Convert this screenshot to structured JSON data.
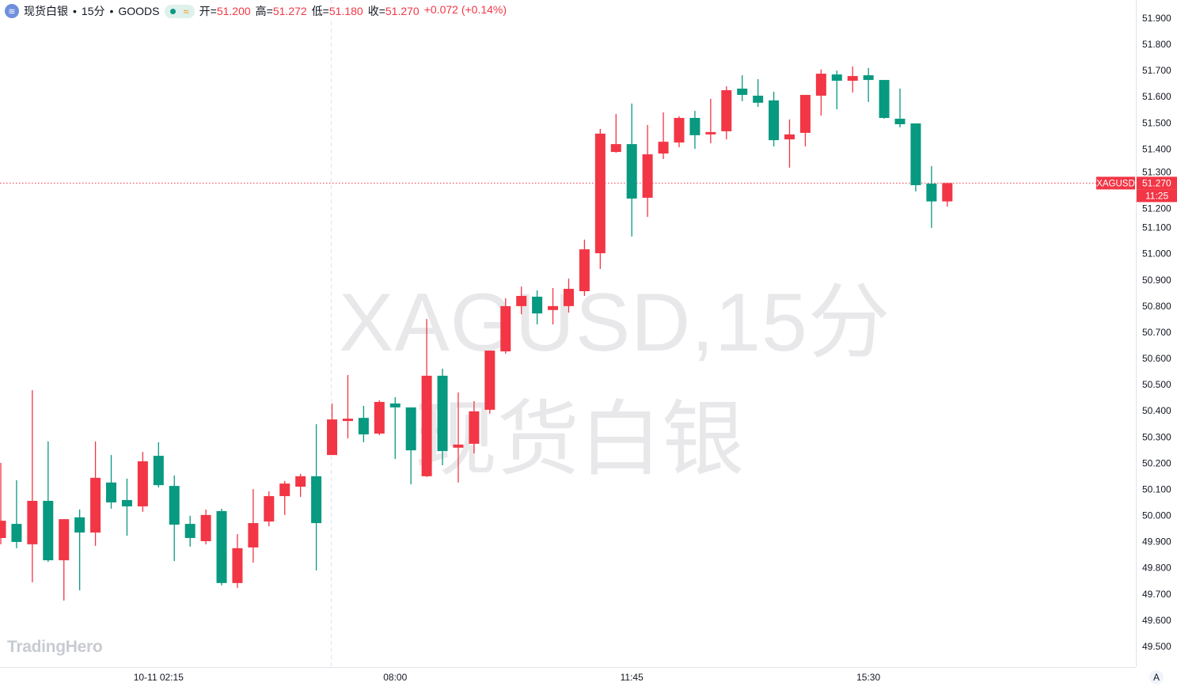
{
  "header": {
    "symbol_name": "现货白银",
    "interval": "15分",
    "exchange": "GOODS",
    "separator": "•",
    "market_status_icon": "green-dot-icon",
    "realtime_icon": "wave-icon",
    "open_label": "开=",
    "open": "51.200",
    "high_label": "高=",
    "high": "51.272",
    "low_label": "低=",
    "low": "51.180",
    "close_label": "收=",
    "close": "51.270",
    "change": "+0.072 (+0.14%)"
  },
  "watermark": {
    "line1": "XAGUSD,15分",
    "line2": "现货白银"
  },
  "brand": "TradingHero",
  "price_label": {
    "symbol": "XAGUSD",
    "price": "51.270",
    "countdown": "11:25"
  },
  "scale_button": "A",
  "colors": {
    "up": "#f23645",
    "down": "#089981",
    "text": "#131722",
    "grid_axis": "#e0e3eb"
  },
  "chart_data": {
    "type": "candlestick",
    "symbol": "XAGUSD",
    "ylim": [
      49.45,
      51.97
    ],
    "yticks": [
      "49.500",
      "49.600",
      "49.700",
      "49.800",
      "49.900",
      "50.000",
      "50.100",
      "50.200",
      "50.300",
      "50.400",
      "50.500",
      "50.600",
      "50.700",
      "50.800",
      "50.900",
      "51.000",
      "51.100",
      "51.200",
      "51.300",
      "51.400",
      "51.500",
      "51.600",
      "51.700",
      "51.800",
      "51.900"
    ],
    "xtick_labels": [
      {
        "time": "02:15",
        "label": "10-11 02:15"
      },
      {
        "time": "08:00",
        "label": "08:00"
      },
      {
        "time": "11:45",
        "label": "11:45"
      },
      {
        "time": "15:30",
        "label": "15:30"
      }
    ],
    "session_break": "07:00",
    "last_price": 51.27,
    "candles": [
      {
        "t": "23:45",
        "o": 49.914,
        "h": 50.201,
        "l": 49.89,
        "c": 49.98
      },
      {
        "t": "00:00",
        "o": 49.968,
        "h": 50.135,
        "l": 49.875,
        "c": 49.899
      },
      {
        "t": "00:15",
        "o": 49.89,
        "h": 50.479,
        "l": 49.745,
        "c": 50.056
      },
      {
        "t": "00:30",
        "o": 50.056,
        "h": 50.283,
        "l": 49.823,
        "c": 49.829
      },
      {
        "t": "00:45",
        "o": 49.829,
        "h": 49.986,
        "l": 49.675,
        "c": 49.986
      },
      {
        "t": "01:00",
        "o": 49.993,
        "h": 50.023,
        "l": 49.714,
        "c": 49.935
      },
      {
        "t": "01:15",
        "o": 49.935,
        "h": 50.283,
        "l": 49.884,
        "c": 50.144
      },
      {
        "t": "01:30",
        "o": 50.126,
        "h": 50.231,
        "l": 50.026,
        "c": 50.05
      },
      {
        "t": "01:45",
        "o": 50.059,
        "h": 50.141,
        "l": 49.923,
        "c": 50.035
      },
      {
        "t": "02:00",
        "o": 50.035,
        "h": 50.243,
        "l": 50.014,
        "c": 50.207
      },
      {
        "t": "02:15",
        "o": 50.228,
        "h": 50.28,
        "l": 50.107,
        "c": 50.116
      },
      {
        "t": "02:30",
        "o": 50.113,
        "h": 50.153,
        "l": 49.826,
        "c": 49.965
      },
      {
        "t": "02:45",
        "o": 49.968,
        "h": 49.999,
        "l": 49.881,
        "c": 49.914
      },
      {
        "t": "03:00",
        "o": 49.902,
        "h": 50.023,
        "l": 49.89,
        "c": 50.002
      },
      {
        "t": "03:15",
        "o": 50.017,
        "h": 50.026,
        "l": 49.733,
        "c": 49.742
      },
      {
        "t": "03:30",
        "o": 49.742,
        "h": 49.929,
        "l": 49.723,
        "c": 49.875
      },
      {
        "t": "03:45",
        "o": 49.878,
        "h": 50.101,
        "l": 49.82,
        "c": 49.971
      },
      {
        "t": "04:00",
        "o": 49.977,
        "h": 50.092,
        "l": 49.959,
        "c": 50.074
      },
      {
        "t": "04:15",
        "o": 50.074,
        "h": 50.132,
        "l": 50.002,
        "c": 50.122
      },
      {
        "t": "04:30",
        "o": 50.11,
        "h": 50.159,
        "l": 50.071,
        "c": 50.15
      },
      {
        "t": "04:45",
        "o": 50.15,
        "h": 50.349,
        "l": 49.79,
        "c": 49.971
      },
      {
        "t": "07:00",
        "o": 50.231,
        "h": 50.428,
        "l": 50.231,
        "c": 50.367
      },
      {
        "t": "07:15",
        "o": 50.361,
        "h": 50.537,
        "l": 50.295,
        "c": 50.37
      },
      {
        "t": "07:30",
        "o": 50.373,
        "h": 50.419,
        "l": 50.28,
        "c": 50.31
      },
      {
        "t": "07:45",
        "o": 50.313,
        "h": 50.44,
        "l": 50.307,
        "c": 50.434
      },
      {
        "t": "08:00",
        "o": 50.428,
        "h": 50.452,
        "l": 50.216,
        "c": 50.413
      },
      {
        "t": "08:15",
        "o": 50.413,
        "h": 50.413,
        "l": 50.119,
        "c": 50.249
      },
      {
        "t": "08:30",
        "o": 50.15,
        "h": 50.751,
        "l": 50.147,
        "c": 50.534
      },
      {
        "t": "08:45",
        "o": 50.534,
        "h": 50.561,
        "l": 50.192,
        "c": 50.246
      },
      {
        "t": "09:00",
        "o": 50.259,
        "h": 50.47,
        "l": 50.126,
        "c": 50.271
      },
      {
        "t": "09:15",
        "o": 50.274,
        "h": 50.437,
        "l": 50.237,
        "c": 50.398
      },
      {
        "t": "09:30",
        "o": 50.404,
        "h": 50.63,
        "l": 50.389,
        "c": 50.63
      },
      {
        "t": "09:45",
        "o": 50.627,
        "h": 50.83,
        "l": 50.618,
        "c": 50.8
      },
      {
        "t": "10:00",
        "o": 50.8,
        "h": 50.875,
        "l": 50.769,
        "c": 50.839
      },
      {
        "t": "10:15",
        "o": 50.836,
        "h": 50.86,
        "l": 50.73,
        "c": 50.772
      },
      {
        "t": "10:30",
        "o": 50.785,
        "h": 50.869,
        "l": 50.73,
        "c": 50.8
      },
      {
        "t": "10:45",
        "o": 50.8,
        "h": 50.905,
        "l": 50.775,
        "c": 50.866
      },
      {
        "t": "11:00",
        "o": 50.857,
        "h": 51.054,
        "l": 50.839,
        "c": 51.017
      },
      {
        "t": "11:15",
        "o": 51.002,
        "h": 51.477,
        "l": 50.942,
        "c": 51.459
      },
      {
        "t": "11:30",
        "o": 51.389,
        "h": 51.534,
        "l": 51.386,
        "c": 51.419
      },
      {
        "t": "11:45",
        "o": 51.419,
        "h": 51.574,
        "l": 51.066,
        "c": 51.211
      },
      {
        "t": "12:00",
        "o": 51.214,
        "h": 51.492,
        "l": 51.141,
        "c": 51.38
      },
      {
        "t": "12:15",
        "o": 51.383,
        "h": 51.54,
        "l": 51.362,
        "c": 51.428
      },
      {
        "t": "12:30",
        "o": 51.425,
        "h": 51.525,
        "l": 51.407,
        "c": 51.519
      },
      {
        "t": "12:45",
        "o": 51.519,
        "h": 51.546,
        "l": 51.401,
        "c": 51.453
      },
      {
        "t": "13:00",
        "o": 51.456,
        "h": 51.592,
        "l": 51.422,
        "c": 51.465
      },
      {
        "t": "13:15",
        "o": 51.468,
        "h": 51.64,
        "l": 51.437,
        "c": 51.625
      },
      {
        "t": "13:30",
        "o": 51.631,
        "h": 51.682,
        "l": 51.583,
        "c": 51.607
      },
      {
        "t": "13:45",
        "o": 51.604,
        "h": 51.667,
        "l": 51.561,
        "c": 51.577
      },
      {
        "t": "14:00",
        "o": 51.586,
        "h": 51.619,
        "l": 51.41,
        "c": 51.434
      },
      {
        "t": "14:15",
        "o": 51.437,
        "h": 51.513,
        "l": 51.329,
        "c": 51.456
      },
      {
        "t": "14:30",
        "o": 51.462,
        "h": 51.607,
        "l": 51.41,
        "c": 51.607
      },
      {
        "t": "14:45",
        "o": 51.604,
        "h": 51.704,
        "l": 51.528,
        "c": 51.688
      },
      {
        "t": "15:00",
        "o": 51.685,
        "h": 51.7,
        "l": 51.552,
        "c": 51.661
      },
      {
        "t": "15:15",
        "o": 51.661,
        "h": 51.716,
        "l": 51.616,
        "c": 51.679
      },
      {
        "t": "15:30",
        "o": 51.682,
        "h": 51.71,
        "l": 51.58,
        "c": 51.664
      },
      {
        "t": "15:45",
        "o": 51.664,
        "h": 51.664,
        "l": 51.516,
        "c": 51.519
      },
      {
        "t": "16:00",
        "o": 51.516,
        "h": 51.631,
        "l": 51.483,
        "c": 51.495
      },
      {
        "t": "16:15",
        "o": 51.498,
        "h": 51.498,
        "l": 51.238,
        "c": 51.262
      },
      {
        "t": "16:30",
        "o": 51.268,
        "h": 51.335,
        "l": 51.099,
        "c": 51.2
      },
      {
        "t": "16:45",
        "o": 51.2,
        "h": 51.272,
        "l": 51.18,
        "c": 51.27
      }
    ]
  }
}
